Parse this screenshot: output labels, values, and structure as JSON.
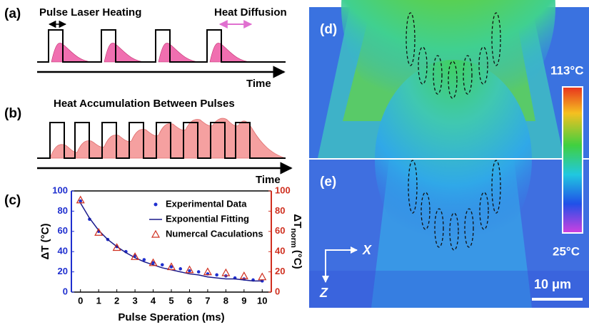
{
  "panel_a": {
    "label": "(a)",
    "left_text": "Pulse Laser Heating",
    "right_text": "Heat Diffusion",
    "axis_label": "Time"
  },
  "panel_b": {
    "label": "(b)",
    "title": "Heat Accumulation Between Pulses",
    "axis_label": "Time"
  },
  "panel_c": {
    "label": "(c)"
  },
  "panel_d": {
    "label": "(d)",
    "colorbar_max": "113°C",
    "colorbar_min": "25°C"
  },
  "panel_e": {
    "label": "(e)",
    "axis_x": "X",
    "axis_z": "Z",
    "scale_bar": "10 μm"
  },
  "chart_data": {
    "type": "scatter",
    "xlabel": "Pulse Speration (ms)",
    "ylabel": "ΔT (°C)",
    "y2label": {
      "main": "ΔT",
      "sub": "norm",
      "unit": "(°C)"
    },
    "xlim": [
      -0.5,
      10.5
    ],
    "xticks": [
      0,
      1,
      2,
      3,
      4,
      5,
      6,
      7,
      8,
      9,
      10
    ],
    "ylim": [
      0,
      100
    ],
    "yticks": [
      0,
      20,
      40,
      60,
      80,
      100
    ],
    "y2lim": [
      0,
      100
    ],
    "y2ticks": [
      0,
      20,
      40,
      60,
      80,
      100
    ],
    "legend": "upper right",
    "series": [
      {
        "name": "Experimental Data",
        "color": "#1f2fcf",
        "marker": "dot",
        "x": [
          0,
          0.5,
          1,
          1.5,
          2,
          2.5,
          3,
          3.5,
          4,
          4.5,
          5,
          5.5,
          6,
          6.5,
          7,
          7.5,
          8,
          8.5,
          9,
          9.5,
          10
        ],
        "values": [
          90,
          72,
          60,
          52,
          45,
          40,
          36,
          32,
          29,
          27,
          25,
          23,
          21,
          20,
          18,
          17,
          16,
          14,
          13,
          12,
          11
        ]
      },
      {
        "name": "Exponential Fitting",
        "color": "#1a1a8c",
        "marker": "line",
        "x": [
          0,
          0.5,
          1,
          1.5,
          2,
          2.5,
          3,
          3.5,
          4,
          4.5,
          5,
          5.5,
          6,
          6.5,
          7,
          7.5,
          8,
          8.5,
          9,
          9.5,
          10
        ],
        "values": [
          88,
          73,
          61,
          52,
          45,
          39,
          34,
          30,
          27,
          24,
          22,
          20,
          18,
          17,
          15,
          14,
          13,
          13,
          12,
          11,
          11
        ]
      },
      {
        "name": "Numercal Caculations",
        "color": "#d03020",
        "marker": "triangle",
        "axis": "y2",
        "x": [
          0,
          1,
          2,
          3,
          4,
          5,
          6,
          7,
          8,
          9,
          10
        ],
        "values": [
          91,
          59,
          44,
          35,
          29,
          25,
          22,
          20,
          19,
          16,
          15
        ]
      }
    ]
  }
}
